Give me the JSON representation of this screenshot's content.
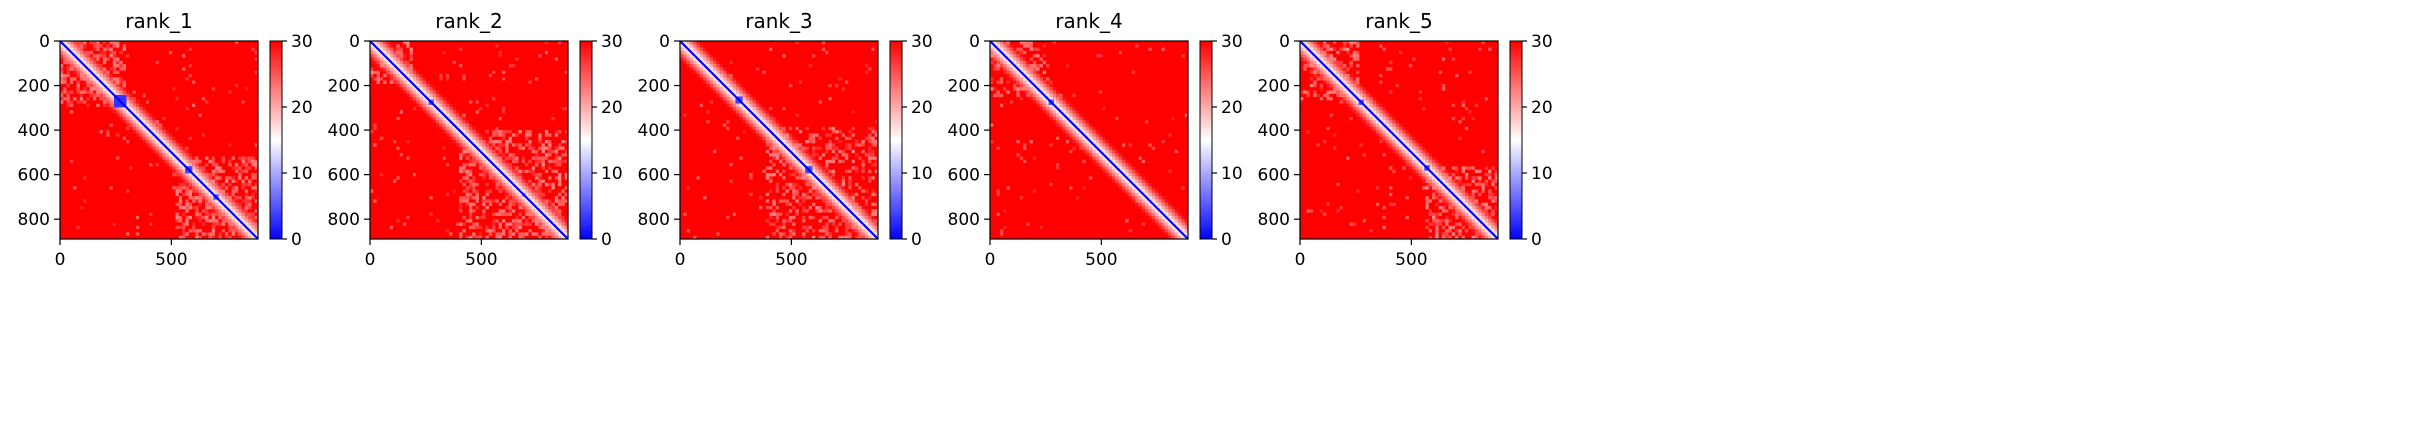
{
  "figure": {
    "background": "#ffffff"
  },
  "colormap": {
    "name": "bwr",
    "low": "#0000ff",
    "mid": "#ffffff",
    "high": "#ff0000"
  },
  "chart_data": [
    {
      "type": "heatmap",
      "title": "rank_1",
      "xlim": [
        0,
        889
      ],
      "ylim": [
        0,
        889
      ],
      "xticks": [
        0,
        500
      ],
      "yticks": [
        0,
        200,
        400,
        600,
        800
      ],
      "colorbar": {
        "min": 0,
        "max": 30,
        "ticks": [
          0,
          10,
          20,
          30
        ]
      },
      "features": {
        "diagonal": true,
        "domains": [
          {
            "center": 270,
            "size": 28,
            "value": 3
          },
          {
            "center": 578,
            "size": 16,
            "value": 4
          },
          {
            "center": 700,
            "size": 12,
            "value": 5
          }
        ],
        "light_blocks": [
          [
            0,
            300
          ],
          [
            520,
            889
          ]
        ],
        "noise": 0.5,
        "seed": 11
      }
    },
    {
      "type": "heatmap",
      "title": "rank_2",
      "xlim": [
        0,
        889
      ],
      "ylim": [
        0,
        889
      ],
      "xticks": [
        0,
        500
      ],
      "yticks": [
        0,
        200,
        400,
        600,
        800
      ],
      "colorbar": {
        "min": 0,
        "max": 30,
        "ticks": [
          0,
          10,
          20,
          30
        ]
      },
      "features": {
        "diagonal": true,
        "domains": [
          {
            "center": 275,
            "size": 12,
            "value": 5
          },
          {
            "center": 690,
            "size": 8,
            "value": 7
          }
        ],
        "light_blocks": [
          [
            0,
            200
          ],
          [
            400,
            889
          ]
        ],
        "noise": 0.45,
        "seed": 23
      }
    },
    {
      "type": "heatmap",
      "title": "rank_3",
      "xlim": [
        0,
        889
      ],
      "ylim": [
        0,
        889
      ],
      "xticks": [
        0,
        500
      ],
      "yticks": [
        0,
        200,
        400,
        600,
        800
      ],
      "colorbar": {
        "min": 0,
        "max": 30,
        "ticks": [
          0,
          10,
          20,
          30
        ]
      },
      "features": {
        "diagonal": true,
        "domains": [
          {
            "center": 265,
            "size": 16,
            "value": 4
          },
          {
            "center": 578,
            "size": 16,
            "value": 4
          }
        ],
        "light_blocks": [
          [
            380,
            889
          ]
        ],
        "noise": 0.35,
        "seed": 37
      }
    },
    {
      "type": "heatmap",
      "title": "rank_4",
      "xlim": [
        0,
        889
      ],
      "ylim": [
        0,
        889
      ],
      "xticks": [
        0,
        500
      ],
      "yticks": [
        0,
        200,
        400,
        600,
        800
      ],
      "colorbar": {
        "min": 0,
        "max": 30,
        "ticks": [
          0,
          10,
          20,
          30
        ]
      },
      "features": {
        "diagonal": true,
        "domains": [
          {
            "center": 275,
            "size": 12,
            "value": 5
          }
        ],
        "light_blocks": [
          [
            0,
            250
          ]
        ],
        "noise": 0.3,
        "seed": 53
      }
    },
    {
      "type": "heatmap",
      "title": "rank_5",
      "xlim": [
        0,
        889
      ],
      "ylim": [
        0,
        889
      ],
      "xticks": [
        0,
        500
      ],
      "yticks": [
        0,
        200,
        400,
        600,
        800
      ],
      "colorbar": {
        "min": 0,
        "max": 30,
        "ticks": [
          0,
          10,
          20,
          30
        ]
      },
      "features": {
        "diagonal": true,
        "domains": [
          {
            "center": 275,
            "size": 12,
            "value": 5
          },
          {
            "center": 570,
            "size": 12,
            "value": 4
          }
        ],
        "light_blocks": [
          [
            0,
            260
          ],
          [
            560,
            889
          ]
        ],
        "noise": 0.45,
        "seed": 71
      }
    }
  ]
}
